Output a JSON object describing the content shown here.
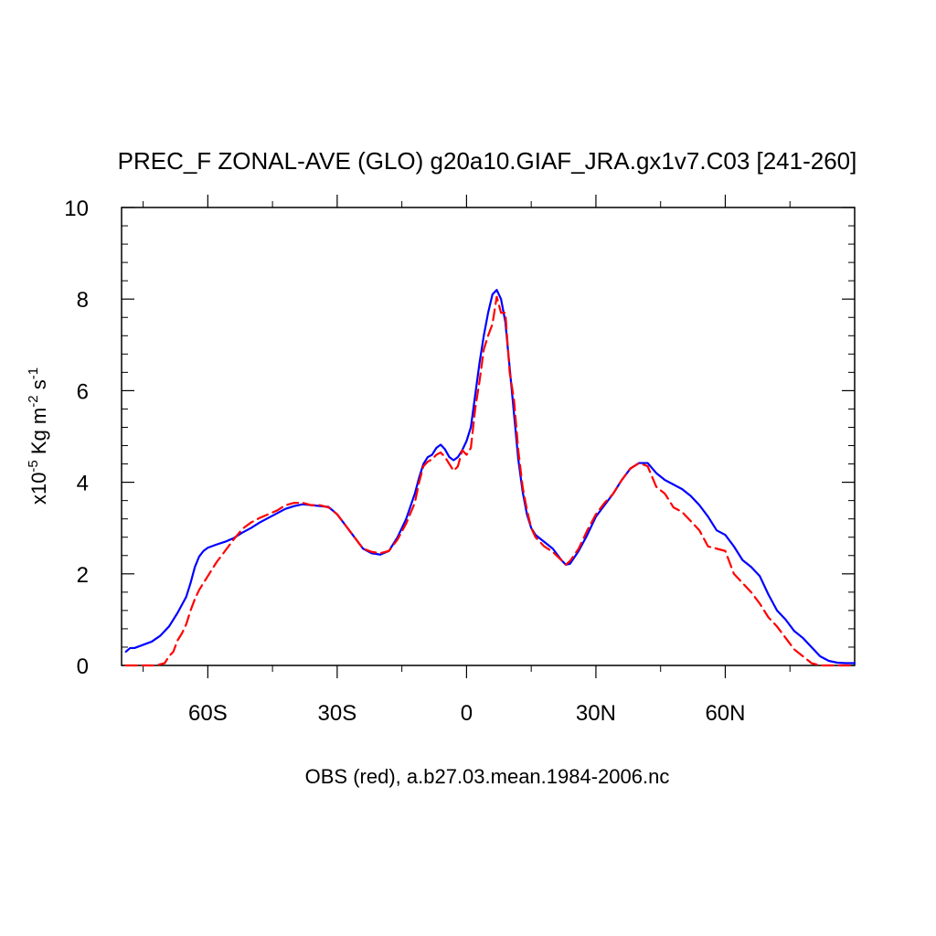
{
  "chart_data": {
    "type": "line",
    "title": "PREC_F ZONAL-AVE (GLO) g20a10.GIAF_JRA.gx1v7.C03 [241-260]",
    "ylabel": {
      "prefix": "x10",
      "exp1": "-5",
      "mid": " Kg m",
      "exp2": "-2",
      "end": " s",
      "exp3": "-1"
    },
    "xlabel": "OBS (red), a.b27.03.mean.1984-2006.nc",
    "xlim": [
      -80,
      90
    ],
    "ylim": [
      0,
      10
    ],
    "x_ticks": [
      {
        "value": -60,
        "label": "60S"
      },
      {
        "value": -30,
        "label": "30S"
      },
      {
        "value": 0,
        "label": "0"
      },
      {
        "value": 30,
        "label": "30N"
      },
      {
        "value": 60,
        "label": "60N"
      }
    ],
    "y_ticks": [
      {
        "value": 0,
        "label": "0"
      },
      {
        "value": 2,
        "label": "2"
      },
      {
        "value": 4,
        "label": "4"
      },
      {
        "value": 6,
        "label": "6"
      },
      {
        "value": 8,
        "label": "8"
      },
      {
        "value": 10,
        "label": "10"
      }
    ],
    "series": [
      {
        "color": "#0000ff",
        "style": "solid",
        "points": [
          [
            -79,
            0.3
          ],
          [
            -78,
            0.38
          ],
          [
            -77,
            0.38
          ],
          [
            -75,
            0.45
          ],
          [
            -73,
            0.52
          ],
          [
            -71,
            0.65
          ],
          [
            -69,
            0.85
          ],
          [
            -67,
            1.15
          ],
          [
            -65,
            1.5
          ],
          [
            -64,
            1.8
          ],
          [
            -63,
            2.15
          ],
          [
            -62,
            2.38
          ],
          [
            -61,
            2.5
          ],
          [
            -60,
            2.57
          ],
          [
            -58,
            2.64
          ],
          [
            -56,
            2.7
          ],
          [
            -54,
            2.78
          ],
          [
            -52,
            2.9
          ],
          [
            -50,
            3.0
          ],
          [
            -48,
            3.12
          ],
          [
            -46,
            3.22
          ],
          [
            -44,
            3.32
          ],
          [
            -42,
            3.42
          ],
          [
            -40,
            3.48
          ],
          [
            -38,
            3.52
          ],
          [
            -36,
            3.5
          ],
          [
            -34,
            3.48
          ],
          [
            -32,
            3.46
          ],
          [
            -30,
            3.3
          ],
          [
            -28,
            3.05
          ],
          [
            -26,
            2.8
          ],
          [
            -24,
            2.55
          ],
          [
            -22,
            2.45
          ],
          [
            -20,
            2.42
          ],
          [
            -18,
            2.5
          ],
          [
            -16,
            2.8
          ],
          [
            -14,
            3.2
          ],
          [
            -12,
            3.75
          ],
          [
            -11,
            4.1
          ],
          [
            -10,
            4.4
          ],
          [
            -9,
            4.55
          ],
          [
            -8,
            4.6
          ],
          [
            -7,
            4.75
          ],
          [
            -6,
            4.82
          ],
          [
            -5,
            4.72
          ],
          [
            -4,
            4.55
          ],
          [
            -3,
            4.48
          ],
          [
            -2,
            4.55
          ],
          [
            -1,
            4.7
          ],
          [
            0,
            4.9
          ],
          [
            1,
            5.2
          ],
          [
            2,
            5.9
          ],
          [
            3,
            6.6
          ],
          [
            4,
            7.2
          ],
          [
            5,
            7.7
          ],
          [
            6,
            8.1
          ],
          [
            7,
            8.2
          ],
          [
            8,
            8.0
          ],
          [
            9,
            7.5
          ],
          [
            10,
            6.5
          ],
          [
            11,
            5.5
          ],
          [
            12,
            4.5
          ],
          [
            13,
            3.8
          ],
          [
            14,
            3.3
          ],
          [
            15,
            3.0
          ],
          [
            16,
            2.85
          ],
          [
            18,
            2.7
          ],
          [
            20,
            2.55
          ],
          [
            22,
            2.3
          ],
          [
            23,
            2.2
          ],
          [
            24,
            2.22
          ],
          [
            26,
            2.5
          ],
          [
            28,
            2.85
          ],
          [
            30,
            3.25
          ],
          [
            32,
            3.5
          ],
          [
            34,
            3.75
          ],
          [
            36,
            4.05
          ],
          [
            38,
            4.3
          ],
          [
            40,
            4.42
          ],
          [
            42,
            4.42
          ],
          [
            44,
            4.2
          ],
          [
            46,
            4.05
          ],
          [
            48,
            3.95
          ],
          [
            50,
            3.85
          ],
          [
            52,
            3.7
          ],
          [
            54,
            3.5
          ],
          [
            56,
            3.25
          ],
          [
            58,
            2.95
          ],
          [
            60,
            2.85
          ],
          [
            62,
            2.6
          ],
          [
            64,
            2.3
          ],
          [
            66,
            2.15
          ],
          [
            68,
            1.95
          ],
          [
            70,
            1.55
          ],
          [
            72,
            1.2
          ],
          [
            74,
            1.0
          ],
          [
            76,
            0.75
          ],
          [
            78,
            0.6
          ],
          [
            80,
            0.4
          ],
          [
            82,
            0.2
          ],
          [
            84,
            0.1
          ],
          [
            86,
            0.06
          ],
          [
            88,
            0.05
          ],
          [
            90,
            0.05
          ]
        ]
      },
      {
        "color": "#ff0000",
        "style": "dashed",
        "points": [
          [
            -79,
            0.0
          ],
          [
            -72,
            0.0
          ],
          [
            -70,
            0.05
          ],
          [
            -69,
            0.2
          ],
          [
            -68,
            0.3
          ],
          [
            -67,
            0.55
          ],
          [
            -66,
            0.7
          ],
          [
            -65,
            0.9
          ],
          [
            -64,
            1.2
          ],
          [
            -63,
            1.45
          ],
          [
            -62,
            1.65
          ],
          [
            -61,
            1.8
          ],
          [
            -60,
            1.95
          ],
          [
            -58,
            2.25
          ],
          [
            -56,
            2.5
          ],
          [
            -54,
            2.75
          ],
          [
            -52,
            2.98
          ],
          [
            -50,
            3.12
          ],
          [
            -48,
            3.22
          ],
          [
            -46,
            3.3
          ],
          [
            -44,
            3.38
          ],
          [
            -42,
            3.5
          ],
          [
            -40,
            3.55
          ],
          [
            -38,
            3.55
          ],
          [
            -36,
            3.5
          ],
          [
            -34,
            3.5
          ],
          [
            -32,
            3.45
          ],
          [
            -30,
            3.3
          ],
          [
            -28,
            3.05
          ],
          [
            -26,
            2.8
          ],
          [
            -24,
            2.55
          ],
          [
            -22,
            2.48
          ],
          [
            -20,
            2.45
          ],
          [
            -18,
            2.5
          ],
          [
            -16,
            2.75
          ],
          [
            -14,
            3.1
          ],
          [
            -12,
            3.55
          ],
          [
            -11,
            4.0
          ],
          [
            -10,
            4.35
          ],
          [
            -9,
            4.45
          ],
          [
            -8,
            4.5
          ],
          [
            -7,
            4.6
          ],
          [
            -6,
            4.65
          ],
          [
            -5,
            4.55
          ],
          [
            -4,
            4.4
          ],
          [
            -3,
            4.25
          ],
          [
            -2,
            4.35
          ],
          [
            -1,
            4.7
          ],
          [
            0,
            4.6
          ],
          [
            1,
            4.75
          ],
          [
            2,
            5.6
          ],
          [
            3,
            6.2
          ],
          [
            4,
            6.9
          ],
          [
            5,
            7.2
          ],
          [
            6,
            7.45
          ],
          [
            7,
            8.05
          ],
          [
            8,
            7.7
          ],
          [
            9,
            7.7
          ],
          [
            10,
            6.4
          ],
          [
            11,
            5.8
          ],
          [
            12,
            4.7
          ],
          [
            13,
            3.9
          ],
          [
            14,
            3.4
          ],
          [
            15,
            3.0
          ],
          [
            16,
            2.8
          ],
          [
            18,
            2.6
          ],
          [
            20,
            2.48
          ],
          [
            22,
            2.3
          ],
          [
            23,
            2.2
          ],
          [
            24,
            2.28
          ],
          [
            26,
            2.55
          ],
          [
            28,
            2.95
          ],
          [
            30,
            3.3
          ],
          [
            32,
            3.55
          ],
          [
            34,
            3.75
          ],
          [
            36,
            4.05
          ],
          [
            38,
            4.3
          ],
          [
            40,
            4.42
          ],
          [
            42,
            4.35
          ],
          [
            44,
            3.9
          ],
          [
            46,
            3.75
          ],
          [
            48,
            3.45
          ],
          [
            50,
            3.35
          ],
          [
            52,
            3.15
          ],
          [
            54,
            2.95
          ],
          [
            56,
            2.6
          ],
          [
            58,
            2.55
          ],
          [
            60,
            2.5
          ],
          [
            62,
            2.0
          ],
          [
            64,
            1.8
          ],
          [
            66,
            1.6
          ],
          [
            68,
            1.35
          ],
          [
            70,
            1.05
          ],
          [
            72,
            0.85
          ],
          [
            74,
            0.6
          ],
          [
            76,
            0.35
          ],
          [
            78,
            0.2
          ],
          [
            80,
            0.05
          ],
          [
            82,
            0.0
          ],
          [
            90,
            0.0
          ]
        ]
      }
    ]
  }
}
